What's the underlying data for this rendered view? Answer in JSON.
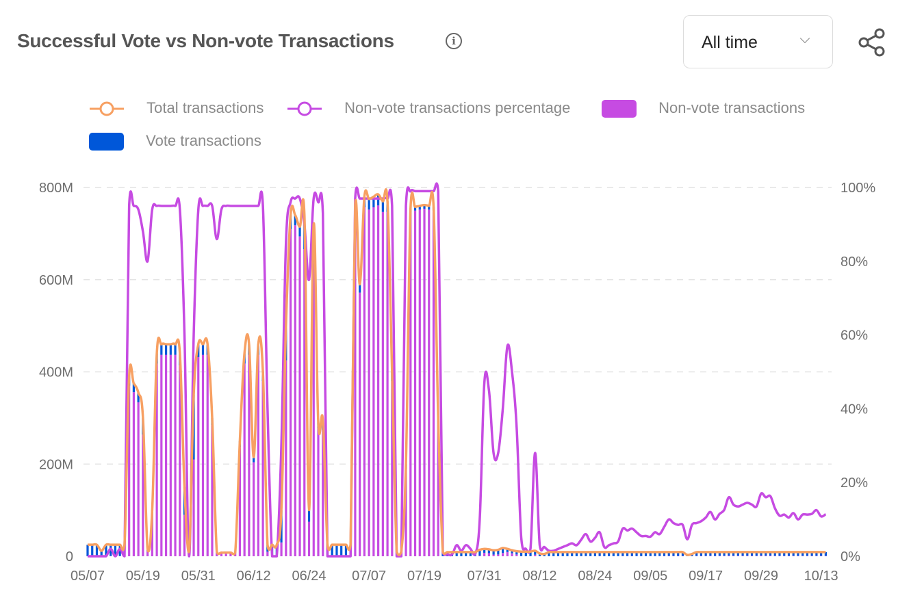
{
  "header": {
    "title": "Successful Vote vs Non-vote Transactions",
    "range_select": "All time"
  },
  "colors": {
    "total": "#f7a062",
    "pct": "#c64be2",
    "non_vote": "#c64be2",
    "vote": "#0057d9",
    "grid": "#e4e4e4"
  },
  "chart_data": {
    "type": "bar",
    "title": "Successful Vote vs Non-vote Transactions",
    "legend": [
      "Total transactions",
      "Non-vote transactions percentage",
      "Non-vote transactions",
      "Vote transactions"
    ],
    "legend_placement": "top",
    "y_left": {
      "label": "",
      "ticks": [
        "0",
        "200M",
        "400M",
        "600M",
        "800M"
      ],
      "range": [
        0,
        800
      ],
      "unit": "M"
    },
    "y_right": {
      "label": "",
      "ticks": [
        "0%",
        "20%",
        "40%",
        "60%",
        "80%",
        "100%"
      ],
      "range": [
        0,
        100
      ],
      "unit": "%"
    },
    "grid": true,
    "n_days": 161,
    "x_ticks": [
      {
        "label": "05/07",
        "index": 0
      },
      {
        "label": "05/19",
        "index": 12
      },
      {
        "label": "05/31",
        "index": 24
      },
      {
        "label": "06/12",
        "index": 36
      },
      {
        "label": "06/24",
        "index": 48
      },
      {
        "label": "07/07",
        "index": 61
      },
      {
        "label": "07/19",
        "index": 73
      },
      {
        "label": "07/31",
        "index": 86
      },
      {
        "label": "08/12",
        "index": 98
      },
      {
        "label": "08/24",
        "index": 110
      },
      {
        "label": "09/05",
        "index": 122
      },
      {
        "label": "09/17",
        "index": 134
      },
      {
        "label": "09/29",
        "index": 146
      },
      {
        "label": "10/13",
        "index": 159
      }
    ],
    "series": [
      {
        "name": "Total transactions",
        "type": "line",
        "axis": "left",
        "values": [
          25,
          25,
          25,
          12,
          25,
          25,
          25,
          25,
          25,
          390,
          375,
          355,
          300,
          15,
          100,
          440,
          460,
          460,
          460,
          460,
          440,
          150,
          10,
          350,
          460,
          460,
          460,
          300,
          10,
          8,
          8,
          8,
          8,
          250,
          440,
          460,
          215,
          460,
          400,
          25,
          25,
          25,
          100,
          500,
          740,
          740,
          715,
          740,
          100,
          720,
          290,
          295,
          25,
          25,
          25,
          25,
          25,
          25,
          760,
          590,
          780,
          775,
          780,
          785,
          770,
          770,
          400,
          10,
          10,
          200,
          755,
          758,
          760,
          762,
          760,
          758,
          300,
          10,
          9,
          9,
          9,
          9,
          9,
          9,
          9,
          14,
          16,
          15,
          13,
          14,
          18,
          16,
          13,
          11,
          10,
          10,
          10,
          12,
          6,
          5,
          9,
          9,
          9,
          9,
          9,
          9,
          9,
          9,
          9,
          9,
          9,
          9,
          9,
          9,
          9,
          9,
          9,
          9,
          9,
          9,
          9,
          9,
          9,
          9,
          9,
          9,
          9,
          9,
          9,
          9,
          3,
          5,
          9,
          9,
          9,
          9,
          9,
          9,
          9,
          9,
          9,
          9,
          9,
          9,
          9,
          9,
          9,
          9,
          9,
          9,
          9,
          9,
          9,
          9,
          9,
          9,
          9,
          9,
          9,
          9,
          9
        ]
      },
      {
        "name": "Non-vote transactions percentage",
        "type": "line",
        "axis": "right",
        "values": [
          0,
          0,
          0,
          0,
          0,
          2,
          0,
          2,
          0,
          95,
          95,
          94,
          88,
          80,
          94,
          95,
          95,
          95,
          95,
          95,
          94,
          60,
          0,
          60,
          94,
          95,
          95,
          95,
          86,
          94,
          95,
          95,
          95,
          95,
          95,
          95,
          95,
          95,
          95,
          40,
          0,
          0,
          30,
          85,
          96,
          97,
          97,
          90,
          75,
          97,
          96,
          93,
          0,
          0,
          0,
          0,
          0,
          0,
          97,
          97,
          97,
          97,
          97,
          97,
          97,
          97,
          95,
          0,
          0,
          95,
          99,
          99,
          99,
          99,
          99,
          99,
          99,
          1,
          0.5,
          0.5,
          3,
          1.5,
          3,
          2,
          0.5,
          10,
          47,
          45,
          28,
          28,
          40,
          57,
          50,
          35,
          5,
          2,
          2,
          28,
          3,
          2.5,
          1.5,
          1.5,
          2,
          2.5,
          3,
          3.5,
          3,
          4.5,
          6,
          4,
          5,
          6.5,
          2.5,
          3,
          3.5,
          4,
          7.5,
          7,
          7.5,
          6.5,
          5.5,
          5.5,
          5.3,
          6.5,
          6,
          8,
          10,
          9,
          8.5,
          8.5,
          4.6,
          8.5,
          9,
          9.5,
          10.5,
          12,
          10,
          11.5,
          12.6,
          16,
          14,
          13.5,
          14,
          14.5,
          14,
          13.5,
          17,
          16,
          16.3,
          13,
          11,
          11.3,
          10.5,
          11.7,
          10,
          11.3,
          11.3,
          11.5,
          12.5,
          10.8,
          11.4
        ]
      },
      {
        "name": "Non-vote transactions",
        "type": "bar",
        "axis": "left",
        "stack": "tx",
        "values": [
          0,
          0,
          0,
          0,
          0,
          0.5,
          0,
          0.5,
          0,
          370,
          356,
          334,
          264,
          12,
          94,
          418,
          437,
          437,
          437,
          437,
          414,
          90,
          0,
          210,
          432,
          437,
          437,
          285,
          8.6,
          7.5,
          7.6,
          7.6,
          7.6,
          237.5,
          418,
          437,
          204,
          437,
          380,
          10,
          0,
          0,
          30,
          425,
          710,
          718,
          694,
          666,
          75,
          698,
          278,
          274,
          0,
          0,
          0,
          0,
          0,
          0,
          737,
          572,
          757,
          752,
          757,
          761,
          747,
          747,
          380,
          0,
          0,
          190,
          747,
          750,
          752,
          754,
          752,
          750,
          297,
          0.1,
          0.05,
          0.05,
          0.27,
          0.14,
          0.27,
          0.18,
          0.05,
          1.4,
          7.5,
          6.75,
          3.64,
          3.92,
          7.2,
          9.12,
          6.5,
          3.85,
          0.5,
          0.2,
          0.2,
          3.36,
          0.18,
          0.13,
          0.14,
          0.14,
          0.18,
          0.23,
          0.27,
          0.32,
          0.27,
          0.41,
          0.54,
          0.36,
          0.45,
          0.59,
          0.23,
          0.27,
          0.32,
          0.36,
          0.68,
          0.63,
          0.68,
          0.59,
          0.5,
          0.5,
          0.48,
          0.59,
          0.54,
          0.72,
          0.9,
          0.81,
          0.77,
          0.77,
          0.14,
          0.43,
          0.81,
          0.86,
          0.95,
          1.08,
          0.9,
          1.04,
          1.13,
          1.44,
          1.26,
          1.22,
          1.26,
          1.31,
          1.26,
          1.22,
          1.53,
          1.44,
          1.47,
          1.17,
          0.99,
          1.02,
          0.95,
          1.05,
          0.9,
          1.02,
          1.02,
          1.04,
          1.13,
          0.97,
          1.03
        ]
      },
      {
        "name": "Vote transactions",
        "type": "bar",
        "axis": "left",
        "stack": "tx",
        "values": [
          25,
          25,
          25,
          12,
          25,
          24.5,
          25,
          24.5,
          25,
          20,
          19,
          21,
          36,
          3,
          6,
          22,
          23,
          23,
          23,
          23,
          26,
          60,
          10,
          140,
          28,
          23,
          23,
          15,
          1.4,
          0.5,
          0.4,
          0.4,
          0.4,
          12.5,
          22,
          23,
          11,
          23,
          20,
          15,
          25,
          25,
          70,
          75,
          30,
          22,
          21,
          74,
          25,
          22,
          12,
          21,
          25,
          25,
          25,
          25,
          25,
          25,
          23,
          18,
          23,
          23,
          23,
          24,
          23,
          23,
          20,
          10,
          10,
          10,
          8,
          8,
          8,
          8,
          8,
          8,
          3,
          9.9,
          8.95,
          8.95,
          8.73,
          8.86,
          8.73,
          8.82,
          8.95,
          12.6,
          8.5,
          8.25,
          9.36,
          10.08,
          10.8,
          6.88,
          6.5,
          7.15,
          9.5,
          9.8,
          9.8,
          8.64,
          5.82,
          4.87,
          8.86,
          8.86,
          8.82,
          8.77,
          8.73,
          8.68,
          8.73,
          8.59,
          8.46,
          8.64,
          8.55,
          8.41,
          8.77,
          8.73,
          8.68,
          8.64,
          8.32,
          8.37,
          8.32,
          8.41,
          8.5,
          8.5,
          8.52,
          8.41,
          8.46,
          8.28,
          8.1,
          8.19,
          8.23,
          8.23,
          2.86,
          4.57,
          8.19,
          8.14,
          8.05,
          7.92,
          8.1,
          7.96,
          7.87,
          7.56,
          7.74,
          7.78,
          7.74,
          7.69,
          7.74,
          7.78,
          7.47,
          7.56,
          7.53,
          7.83,
          8.01,
          7.98,
          8.05,
          7.95,
          8.1,
          7.98,
          7.98,
          7.96,
          7.87,
          8.03,
          7.97
        ]
      }
    ]
  }
}
